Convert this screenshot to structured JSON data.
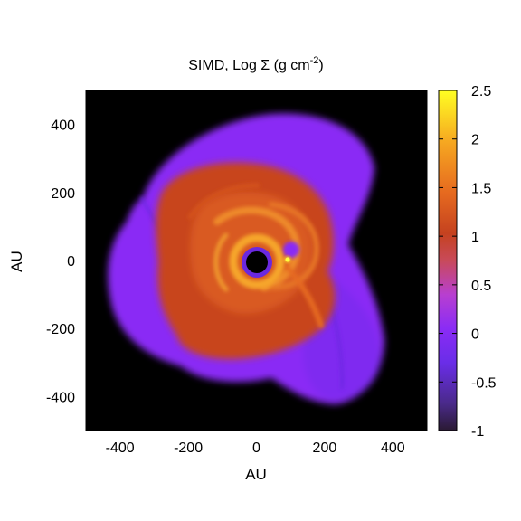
{
  "chart_data": {
    "type": "heatmap",
    "title": {
      "prefix": "SIMD, Log ",
      "symbol": "Σ",
      "unit_open": " (g cm",
      "unit_exp": "-2",
      "unit_close": ")"
    },
    "xlabel": "AU",
    "ylabel": "AU",
    "xlim": [
      -500,
      500
    ],
    "ylim": [
      -500,
      500
    ],
    "x_ticks": [
      -400,
      -200,
      0,
      200,
      400
    ],
    "y_ticks": [
      -400,
      -200,
      0,
      200,
      400
    ],
    "x_tick_labels": [
      "-400",
      "-200",
      "0",
      "200",
      "400"
    ],
    "y_tick_labels": [
      "-400",
      "-200",
      "0",
      "200",
      "400"
    ],
    "colorbar": {
      "range": [
        -1,
        2.5
      ],
      "ticks": [
        -1,
        -0.5,
        0,
        0.5,
        1,
        1.5,
        2,
        2.5
      ],
      "tick_labels": [
        "-1",
        "-0.5",
        "0",
        "0.5",
        "1",
        "1.5",
        "2",
        "2.5"
      ],
      "colormap": [
        "#2a1a33",
        "#5b2bd8",
        "#8a2cf5",
        "#c246c8",
        "#c5421f",
        "#e66a1f",
        "#f6a821",
        "#ffff22"
      ]
    },
    "background_color": "#000000",
    "grid": false,
    "features": {
      "disk_outer_radius_au": 435,
      "central_cavity_radius_au": 32,
      "companion": {
        "x": 85,
        "y": 5
      }
    }
  }
}
